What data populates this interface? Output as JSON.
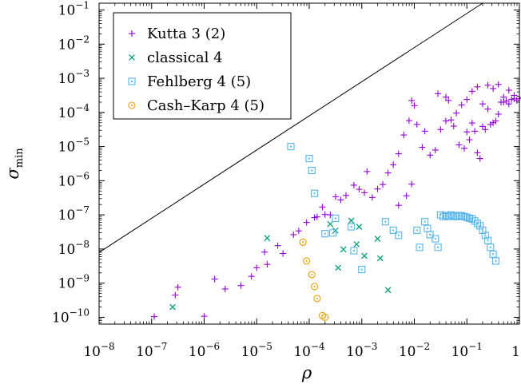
{
  "chart_data": {
    "type": "scatter",
    "title": "",
    "xlabel": "ρ",
    "ylabel": {
      "main": "σ",
      "sub": "min"
    },
    "xscale": "log",
    "yscale": "log",
    "xlim_exponent": [
      -8,
      0
    ],
    "ylim_exponent": [
      -10.2,
      -0.8
    ],
    "x_ticks": [
      {
        "base": "10",
        "exp": "−8"
      },
      {
        "base": "10",
        "exp": "−7"
      },
      {
        "base": "10",
        "exp": "−6"
      },
      {
        "base": "10",
        "exp": "−5"
      },
      {
        "base": "10",
        "exp": "−4"
      },
      {
        "base": "10",
        "exp": "−3"
      },
      {
        "base": "10",
        "exp": "−2"
      },
      {
        "base": "10",
        "exp": "−1"
      },
      {
        "base": "1",
        "exp": ""
      }
    ],
    "y_ticks": [
      {
        "base": "10",
        "exp": "−10"
      },
      {
        "base": "10",
        "exp": "−9"
      },
      {
        "base": "10",
        "exp": "−8"
      },
      {
        "base": "10",
        "exp": "−7"
      },
      {
        "base": "10",
        "exp": "−6"
      },
      {
        "base": "10",
        "exp": "−5"
      },
      {
        "base": "10",
        "exp": "−4"
      },
      {
        "base": "10",
        "exp": "−3"
      },
      {
        "base": "10",
        "exp": "−2"
      },
      {
        "base": "10",
        "exp": "−1"
      }
    ],
    "grid": false,
    "legend_position": "top-left",
    "reference_line": {
      "log10_points": [
        [
          -8,
          -8.1
        ],
        [
          -0.7,
          -0.8
        ]
      ],
      "color": "#000000"
    },
    "series": [
      {
        "name": "Kutta 3 (2)",
        "marker": "plus",
        "color": "#9400d3",
        "log10_points": [
          [
            -6.95,
            -9.98
          ],
          [
            -6.5,
            -9.12
          ],
          [
            -6.55,
            -9.35
          ],
          [
            -6.0,
            -9.97
          ],
          [
            -5.8,
            -8.88
          ],
          [
            -5.6,
            -9.17
          ],
          [
            -5.3,
            -9.07
          ],
          [
            -5.1,
            -8.8
          ],
          [
            -5.0,
            -8.55
          ],
          [
            -4.85,
            -8.09
          ],
          [
            -4.8,
            -8.45
          ],
          [
            -4.6,
            -7.9
          ],
          [
            -4.5,
            -8.13
          ],
          [
            -4.3,
            -7.58
          ],
          [
            -4.2,
            -7.47
          ],
          [
            -4.05,
            -7.22
          ],
          [
            -3.9,
            -7.08
          ],
          [
            -3.75,
            -6.77
          ],
          [
            -3.85,
            -7.06
          ],
          [
            -3.7,
            -6.99
          ],
          [
            -3.6,
            -7.0
          ],
          [
            -3.5,
            -6.47
          ],
          [
            -3.4,
            -6.56
          ],
          [
            -3.3,
            -6.43
          ],
          [
            -3.15,
            -6.13
          ],
          [
            -3.05,
            -6.25
          ],
          [
            -2.95,
            -6.35
          ],
          [
            -2.9,
            -5.73
          ],
          [
            -2.8,
            -6.49
          ],
          [
            -2.7,
            -6.24
          ],
          [
            -2.6,
            -6.11
          ],
          [
            -2.5,
            -5.77
          ],
          [
            -2.4,
            -5.53
          ],
          [
            -2.3,
            -5.21
          ],
          [
            -2.2,
            -4.66
          ],
          [
            -2.1,
            -4.24
          ],
          [
            -2.05,
            -3.65
          ],
          [
            -2.0,
            -3.8
          ],
          [
            -1.95,
            -4.35
          ],
          [
            -1.85,
            -5.02
          ],
          [
            -1.8,
            -4.55
          ],
          [
            -1.7,
            -5.25
          ],
          [
            -1.6,
            -5.1
          ],
          [
            -1.5,
            -4.5
          ],
          [
            -1.4,
            -4.25
          ],
          [
            -1.3,
            -4.22
          ],
          [
            -1.2,
            -4.02
          ],
          [
            -1.1,
            -3.78
          ],
          [
            -1.0,
            -3.62
          ],
          [
            -0.9,
            -3.38
          ],
          [
            -0.8,
            -3.25
          ],
          [
            -0.7,
            -3.75
          ],
          [
            -0.6,
            -3.2
          ],
          [
            -0.5,
            -3.3
          ],
          [
            -0.4,
            -3.18
          ],
          [
            -0.3,
            -3.55
          ],
          [
            -0.2,
            -3.35
          ],
          [
            -0.1,
            -3.5
          ],
          [
            -2.3,
            -6.72
          ],
          [
            -2.15,
            -6.44
          ],
          [
            -2.05,
            -6.1
          ],
          [
            -1.0,
            -4.57
          ],
          [
            -0.9,
            -4.31
          ],
          [
            -0.8,
            -5.18
          ],
          [
            -0.7,
            -4.41
          ],
          [
            -0.6,
            -3.9
          ],
          [
            -0.5,
            -4.3
          ],
          [
            -0.4,
            -4.05
          ],
          [
            -0.3,
            -3.7
          ],
          [
            -0.2,
            -3.75
          ],
          [
            -0.1,
            -3.6
          ],
          [
            -0.05,
            -3.65
          ],
          [
            0.0,
            -3.6
          ],
          [
            0.05,
            -3.56
          ],
          [
            -1.55,
            -3.45
          ],
          [
            -1.4,
            -3.55
          ],
          [
            -1.35,
            -3.65
          ],
          [
            -1.25,
            -4.4
          ],
          [
            -1.15,
            -4.95
          ],
          [
            -1.05,
            -5.05
          ],
          [
            -0.95,
            -4.8
          ],
          [
            -0.85,
            -4.55
          ],
          [
            -0.75,
            -5.35
          ],
          [
            -0.65,
            -4.5
          ],
          [
            -0.55,
            -4.35
          ],
          [
            -0.45,
            -4.25
          ],
          [
            -0.35,
            -3.7
          ],
          [
            -0.25,
            -3.66
          ],
          [
            -0.15,
            -3.62
          ]
        ]
      },
      {
        "name": "classical 4",
        "marker": "cross",
        "color": "#009e73",
        "log10_points": [
          [
            -6.6,
            -9.7
          ],
          [
            -4.8,
            -7.68
          ],
          [
            -3.6,
            -7.27
          ],
          [
            -3.5,
            -7.46
          ],
          [
            -3.45,
            -8.55
          ],
          [
            -3.35,
            -8.01
          ],
          [
            -3.2,
            -7.17
          ],
          [
            -3.1,
            -7.86
          ],
          [
            -3.05,
            -7.35
          ],
          [
            -2.95,
            -8.2
          ],
          [
            -2.7,
            -7.7
          ],
          [
            -2.65,
            -8.27
          ],
          [
            -2.5,
            -9.2
          ]
        ]
      },
      {
        "name": "Fehlberg 4 (5)",
        "marker": "square",
        "color": "#56b4e9",
        "log10_points": [
          [
            -4.35,
            -5.0
          ],
          [
            -4.0,
            -5.35
          ],
          [
            -3.95,
            -5.7
          ],
          [
            -3.9,
            -6.37
          ],
          [
            -3.7,
            -7.55
          ],
          [
            -3.55,
            -7.53
          ],
          [
            -3.5,
            -7.1
          ],
          [
            -3.2,
            -7.35
          ],
          [
            -3.15,
            -8.05
          ],
          [
            -3.0,
            -8.6
          ],
          [
            -2.55,
            -7.2
          ],
          [
            -2.4,
            -7.45
          ],
          [
            -2.3,
            -7.6
          ],
          [
            -1.95,
            -7.45
          ],
          [
            -1.9,
            -7.95
          ],
          [
            -1.8,
            -7.2
          ],
          [
            -1.75,
            -7.4
          ],
          [
            -1.7,
            -7.58
          ],
          [
            -1.6,
            -7.7
          ],
          [
            -1.55,
            -7.95
          ],
          [
            -1.5,
            -7.0
          ],
          [
            -1.45,
            -7.05
          ],
          [
            -1.4,
            -7.02
          ],
          [
            -1.35,
            -7.05
          ],
          [
            -1.3,
            -7.0
          ],
          [
            -1.25,
            -7.03
          ],
          [
            -1.2,
            -7.05
          ],
          [
            -1.15,
            -7.02
          ],
          [
            -1.1,
            -7.03
          ],
          [
            -1.05,
            -7.05
          ],
          [
            -1.0,
            -7.07
          ],
          [
            -0.95,
            -7.1
          ],
          [
            -0.9,
            -7.12
          ],
          [
            -0.85,
            -7.18
          ],
          [
            -0.8,
            -7.25
          ],
          [
            -0.75,
            -7.32
          ],
          [
            -0.7,
            -7.45
          ],
          [
            -0.65,
            -7.6
          ],
          [
            -0.6,
            -7.75
          ],
          [
            -0.55,
            -7.95
          ],
          [
            -0.5,
            -8.15
          ],
          [
            -0.45,
            -8.35
          ]
        ]
      },
      {
        "name": "Cash–Karp 4 (5)",
        "marker": "circle",
        "color": "#e69f00",
        "log10_points": [
          [
            -4.12,
            -7.8
          ],
          [
            -4.05,
            -8.35
          ],
          [
            -3.95,
            -8.75
          ],
          [
            -3.9,
            -9.1
          ],
          [
            -3.85,
            -9.45
          ],
          [
            -3.75,
            -9.95
          ],
          [
            -3.7,
            -10.0
          ]
        ]
      }
    ]
  }
}
